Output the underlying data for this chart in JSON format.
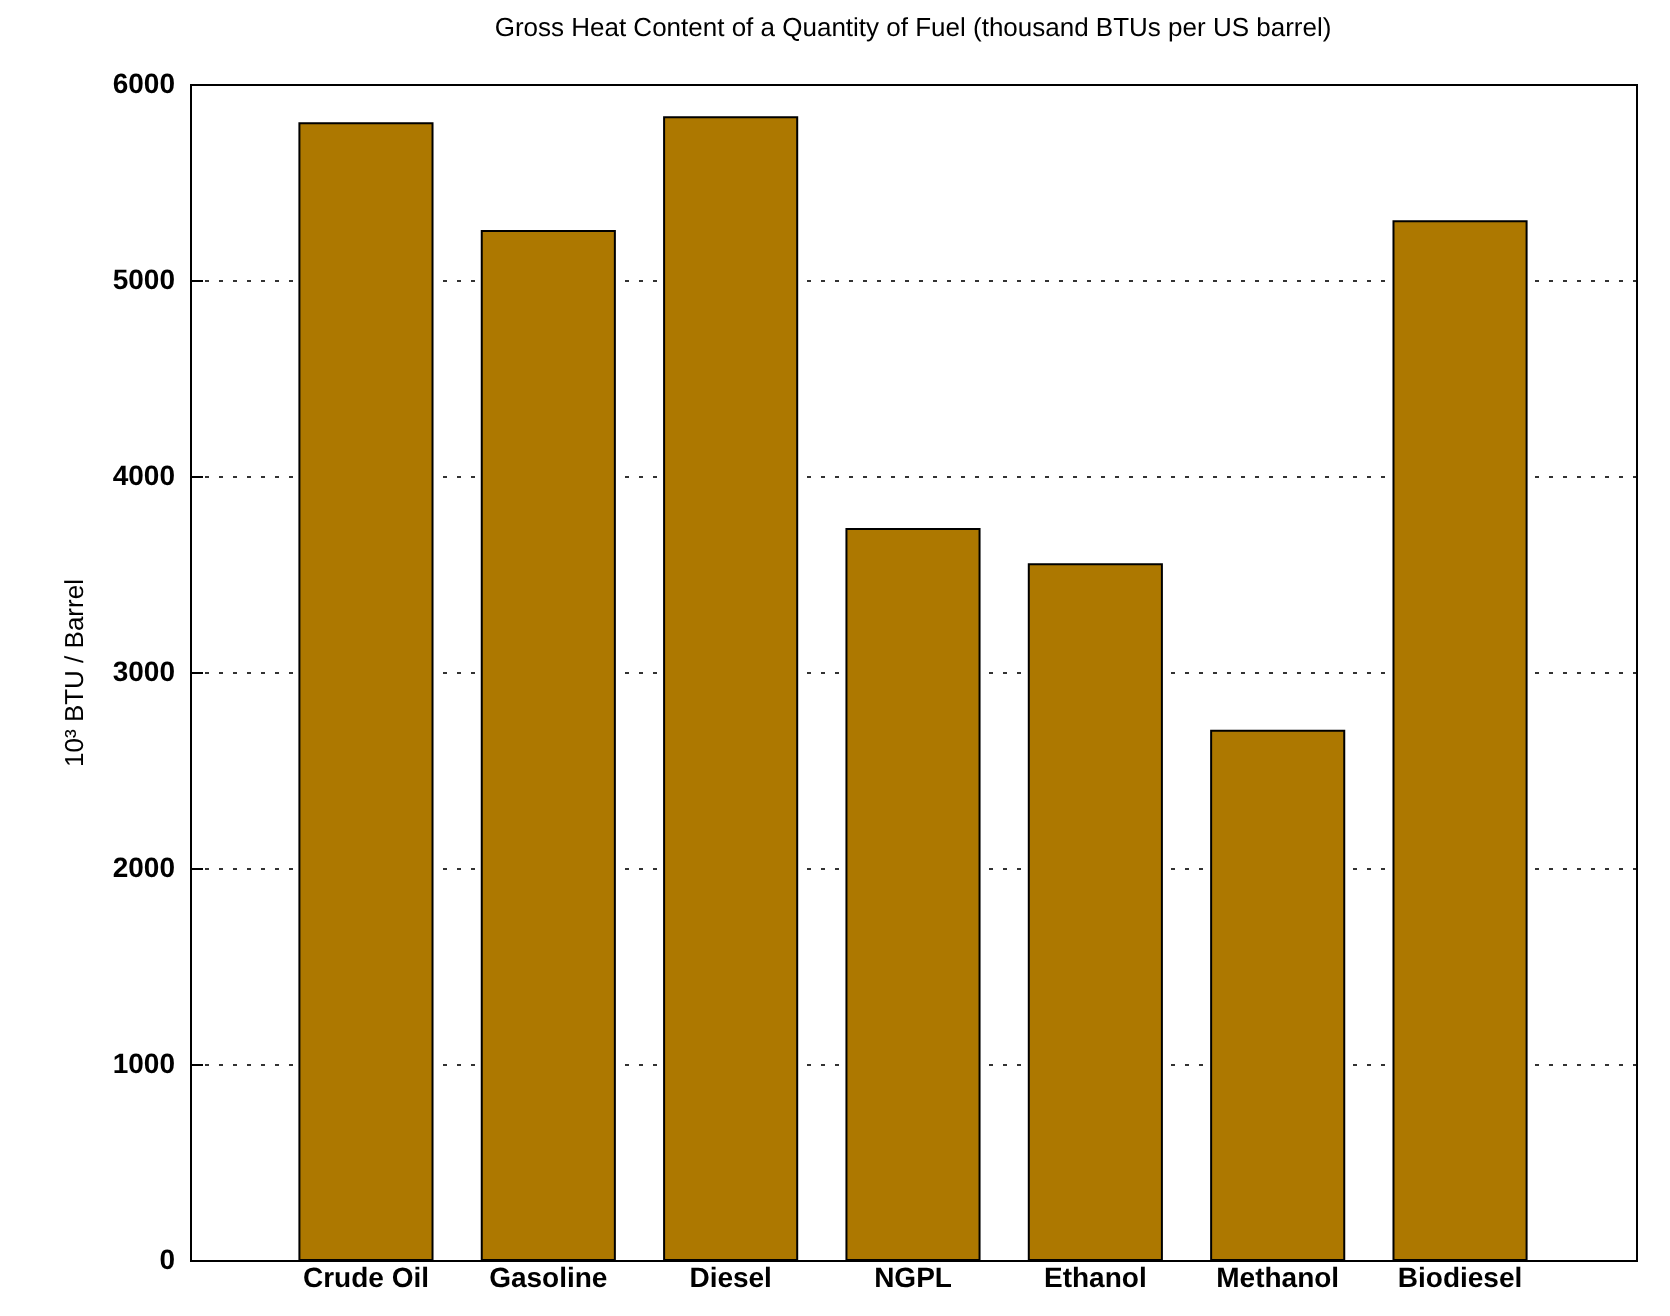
{
  "chart_data": {
    "type": "bar",
    "title": "Gross Heat Content of a Quantity of Fuel (thousand BTUs per US barrel)",
    "ylabel": "10³ BTU / Barrel",
    "categories": [
      "Crude Oil",
      "Gasoline",
      "Diesel",
      "NGPL",
      "Ethanol",
      "Methanol",
      "Biodiesel"
    ],
    "values": [
      5800,
      5250,
      5830,
      3730,
      3550,
      2700,
      5300
    ],
    "color": "#ad7800",
    "ylim": [
      0,
      6000
    ],
    "yticks": [
      0,
      1000,
      2000,
      3000,
      4000,
      5000,
      6000
    ],
    "grid": "y"
  }
}
